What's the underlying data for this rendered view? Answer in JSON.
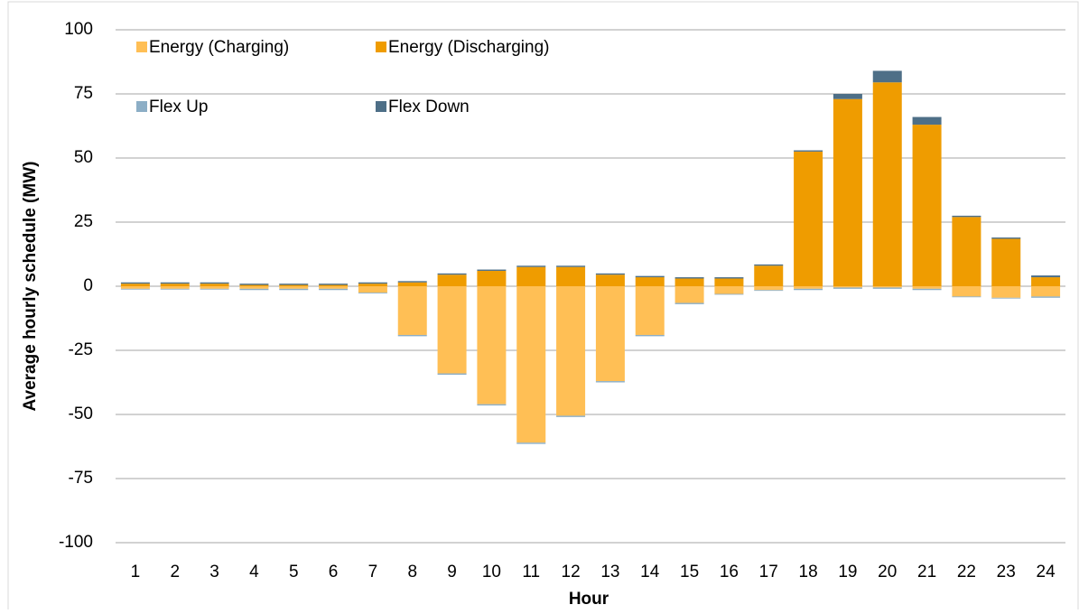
{
  "chart_data": {
    "type": "bar",
    "stacked": true,
    "xlabel": "Hour",
    "ylabel": "Average hourly schedule (MW)",
    "categories": [
      "1",
      "2",
      "3",
      "4",
      "5",
      "6",
      "7",
      "8",
      "9",
      "10",
      "11",
      "12",
      "13",
      "14",
      "15",
      "16",
      "17",
      "18",
      "19",
      "20",
      "21",
      "22",
      "23",
      "24"
    ],
    "series": [
      {
        "name": "Energy (Charging)",
        "color": "#ffbf55",
        "values": [
          -1,
          -1,
          -1,
          -1,
          -1,
          -1,
          -2.5,
          -19,
          -34,
          -46,
          -61,
          -50.5,
          -37,
          -19,
          -6.5,
          -3,
          -1.5,
          -1,
          -0.5,
          -0.5,
          -1,
          -4,
          -4.5,
          -4
        ]
      },
      {
        "name": "Energy (Discharging)",
        "color": "#ef9c00",
        "values": [
          1,
          1,
          1,
          0.5,
          0.5,
          0.5,
          1,
          1.5,
          4.5,
          6,
          7.5,
          7.5,
          4.5,
          3.5,
          3,
          3,
          8,
          52.5,
          73,
          79.5,
          63,
          27,
          18.5,
          3.5
        ]
      },
      {
        "name": "Flex Up",
        "color": "#8caec6",
        "values": [
          -0.3,
          -0.3,
          -0.3,
          -0.5,
          -0.5,
          -0.5,
          -0.3,
          -0.5,
          -0.5,
          -0.5,
          -0.5,
          -0.5,
          -0.5,
          -0.5,
          -0.5,
          -0.3,
          -0.3,
          -0.5,
          -0.5,
          -0.5,
          -0.5,
          -0.3,
          -0.3,
          -0.5
        ]
      },
      {
        "name": "Flex Down",
        "color": "#4e6f87",
        "values": [
          0.5,
          0.5,
          0.5,
          0.5,
          0.5,
          0.5,
          0.5,
          0.5,
          0.5,
          0.5,
          0.5,
          0.5,
          0.5,
          0.5,
          0.5,
          0.5,
          0.5,
          0.5,
          2,
          4.5,
          3,
          0.5,
          0.5,
          0.7
        ]
      }
    ],
    "ylim": [
      -100,
      100
    ],
    "yticks": [
      -100,
      -75,
      -50,
      -25,
      0,
      25,
      50,
      75,
      100
    ],
    "grid": true,
    "legend": "upper left"
  }
}
